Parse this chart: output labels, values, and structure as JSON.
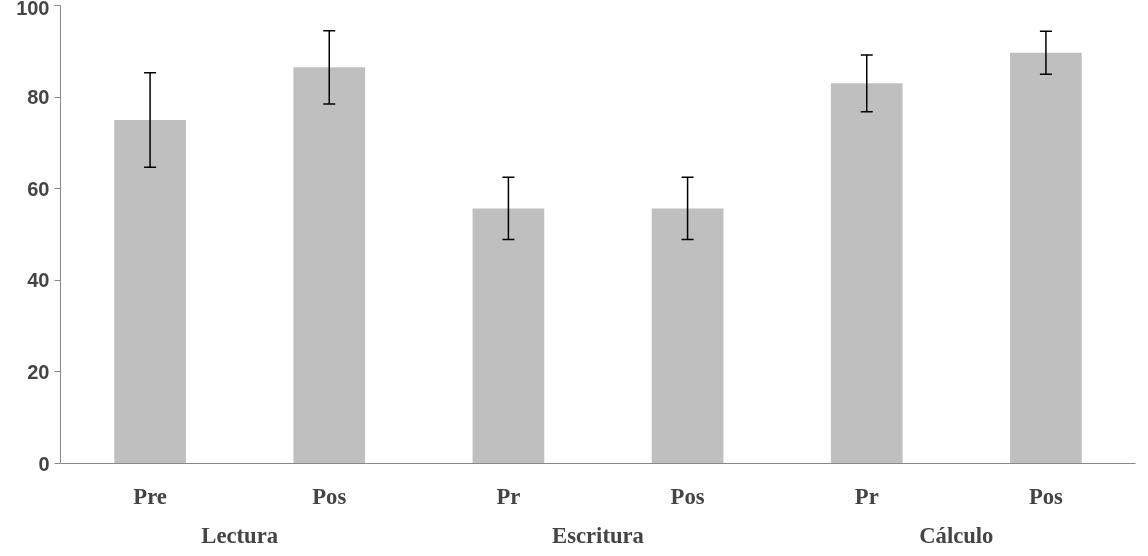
{
  "chart_data": {
    "type": "bar",
    "categories": [
      "Pre",
      "Pos",
      "Pr",
      "Pos",
      "Pr",
      "Pos"
    ],
    "values": [
      75,
      86.5,
      55.7,
      55.7,
      83,
      89.7
    ],
    "errors": [
      10.3,
      8,
      6.8,
      6.8,
      6.2,
      4.7
    ],
    "color": "#bfbfbf",
    "annotations": [
      "Lectura",
      "Escritura",
      "Cálculo"
    ],
    "ylim": [
      0,
      100
    ],
    "yticks": [
      0,
      20,
      40,
      60,
      80,
      100
    ],
    "grid": false
  }
}
